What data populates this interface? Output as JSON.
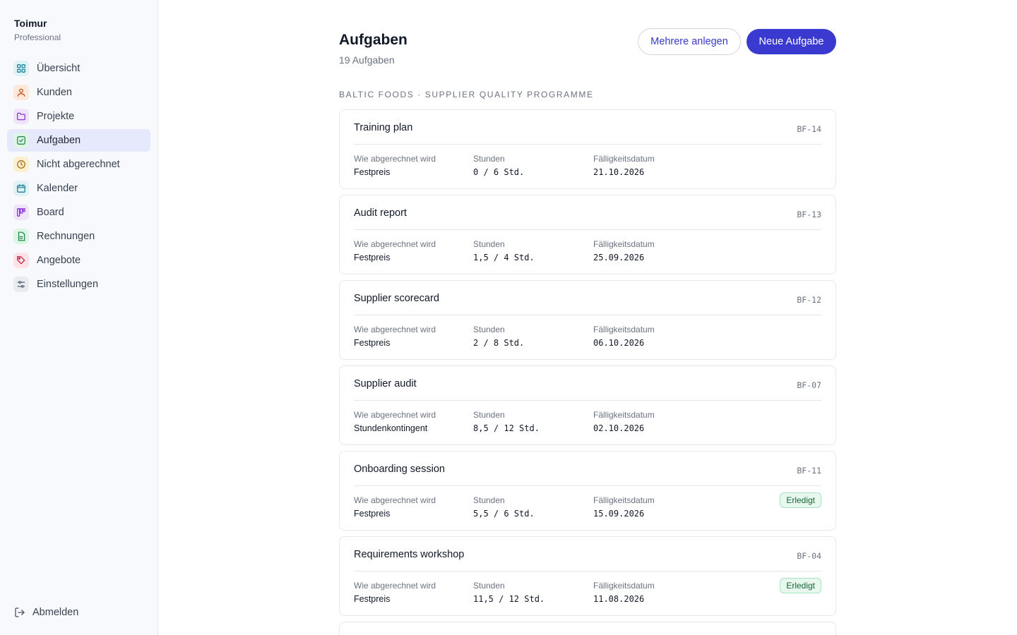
{
  "sidebar": {
    "brand_name": "Toimur",
    "brand_plan": "Professional",
    "items": [
      {
        "label": "Übersicht",
        "icon": "grid-icon",
        "color": "#0e7490",
        "bg": "#dff3f7"
      },
      {
        "label": "Kunden",
        "icon": "user-icon",
        "color": "#c2410c",
        "bg": "#fde8da"
      },
      {
        "label": "Projekte",
        "icon": "folder-icon",
        "color": "#7e22ce",
        "bg": "#f0e4fb"
      },
      {
        "label": "Aufgaben",
        "icon": "check-square-icon",
        "color": "#15803d",
        "bg": "#dcf5e4"
      },
      {
        "label": "Nicht abgerechnet",
        "icon": "clock-icon",
        "color": "#a16207",
        "bg": "#fdf0cf"
      },
      {
        "label": "Kalender",
        "icon": "calendar-icon",
        "color": "#0e7490",
        "bg": "#dff3f7"
      },
      {
        "label": "Board",
        "icon": "kanban-icon",
        "color": "#7e22ce",
        "bg": "#f0e4fb"
      },
      {
        "label": "Rechnungen",
        "icon": "document-icon",
        "color": "#15803d",
        "bg": "#dcf5e4"
      },
      {
        "label": "Angebote",
        "icon": "tag-icon",
        "color": "#be123c",
        "bg": "#fde2e6"
      },
      {
        "label": "Einstellungen",
        "icon": "sliders-icon",
        "color": "#475569",
        "bg": "#e8ebf0"
      }
    ],
    "active_index": 3,
    "logout_label": "Abmelden"
  },
  "header": {
    "title": "Aufgaben",
    "subtitle": "19 Aufgaben",
    "secondary_button": "Mehrere anlegen",
    "primary_button": "Neue Aufgabe"
  },
  "section_label": "Baltic Foods · Supplier Quality Programme",
  "field_labels": {
    "billing": "Wie abgerechnet wird",
    "hours": "Stunden",
    "due": "Fälligkeitsdatum"
  },
  "tasks": [
    {
      "title": "Training plan",
      "id": "BF-14",
      "billing": "Festpreis",
      "hours": "0 / 6 Std.",
      "due": "21.10.2026",
      "badge": ""
    },
    {
      "title": "Audit report",
      "id": "BF-13",
      "billing": "Festpreis",
      "hours": "1,5 / 4 Std.",
      "due": "25.09.2026",
      "badge": ""
    },
    {
      "title": "Supplier scorecard",
      "id": "BF-12",
      "billing": "Festpreis",
      "hours": "2 / 8 Std.",
      "due": "06.10.2026",
      "badge": ""
    },
    {
      "title": "Supplier audit",
      "id": "BF-07",
      "billing": "Stundenkontingent",
      "hours": "8,5 / 12 Std.",
      "due": "02.10.2026",
      "badge": ""
    },
    {
      "title": "Onboarding session",
      "id": "BF-11",
      "billing": "Festpreis",
      "hours": "5,5 / 6 Std.",
      "due": "15.09.2026",
      "badge": "Erledigt"
    },
    {
      "title": "Requirements workshop",
      "id": "BF-04",
      "billing": "Festpreis",
      "hours": "11,5 / 12 Std.",
      "due": "11.08.2026",
      "badge": "Erledigt"
    }
  ],
  "colors": {
    "accent": "#3a3ad0",
    "done_badge_bg": "#e8f8ee",
    "done_badge_text": "#166534"
  }
}
